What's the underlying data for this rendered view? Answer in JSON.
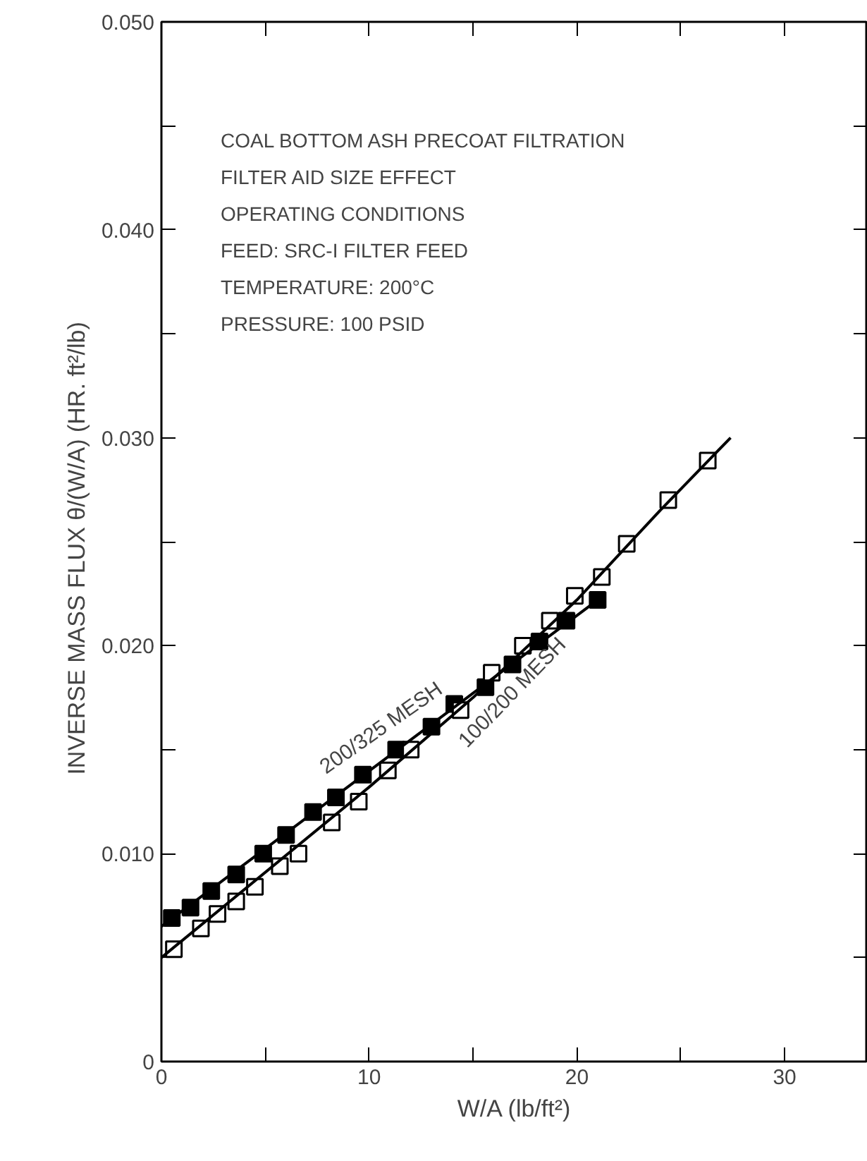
{
  "chart_data": {
    "type": "scatter",
    "xlabel": "W/A (lb/ft²)",
    "ylabel": "INVERSE MASS FLUX  θ/(W/A)  (HR. ft²/lb)",
    "annotations": [
      "COAL BOTTOM ASH PRECOAT FILTRATION",
      "FILTER AID SIZE EFFECT",
      "OPERATING CONDITIONS",
      "FEED: SRC-I FILTER FEED",
      "TEMPERATURE: 200°C",
      "PRESSURE: 100 PSID"
    ],
    "xlim": [
      0,
      34
    ],
    "ylim": [
      0,
      0.05
    ],
    "xticks": [
      0,
      {
        "value": 5,
        "label": null
      },
      10,
      {
        "value": 15,
        "label": null
      },
      20,
      {
        "value": 25,
        "label": null
      },
      30
    ],
    "yticks": [
      0,
      {
        "value": 0.005,
        "label": null
      },
      {
        "value": 0.01,
        "label": "0.010"
      },
      {
        "value": 0.015,
        "label": null
      },
      {
        "value": 0.02,
        "label": "0.020"
      },
      {
        "value": 0.025,
        "label": null
      },
      {
        "value": 0.03,
        "label": "0.030"
      },
      {
        "value": 0.035,
        "label": null
      },
      {
        "value": 0.04,
        "label": "0.040"
      },
      {
        "value": 0.045,
        "label": null
      },
      {
        "value": 0.05,
        "label": "0.050"
      }
    ],
    "grid": false,
    "marker": "square",
    "series": [
      {
        "name": "200/325 MESH",
        "color": "#000000",
        "x": [
          0.5,
          1.4,
          2.4,
          3.6,
          4.9,
          6.0,
          7.3,
          8.4,
          9.7,
          11.3,
          13.0,
          14.1,
          15.6,
          16.9,
          18.2,
          19.5,
          21.0
        ],
        "values": [
          0.0069,
          0.0074,
          0.0082,
          0.009,
          0.01,
          0.0109,
          0.012,
          0.0127,
          0.0138,
          0.015,
          0.0161,
          0.0172,
          0.018,
          0.0191,
          0.0202,
          0.0212,
          0.0222
        ]
      },
      {
        "name": "100/200 MESH",
        "color": "#ffffff",
        "x": [
          0.6,
          1.9,
          2.7,
          3.6,
          4.5,
          5.7,
          6.6,
          8.2,
          9.5,
          10.9,
          12.0,
          14.4,
          15.9,
          17.4,
          18.7,
          19.9,
          21.2,
          22.4,
          24.4,
          26.3
        ],
        "values": [
          0.0054,
          0.0064,
          0.0071,
          0.0077,
          0.0084,
          0.0094,
          0.01,
          0.0115,
          0.0125,
          0.014,
          0.015,
          0.0169,
          0.0187,
          0.02,
          0.0212,
          0.0224,
          0.0233,
          0.0249,
          0.027,
          0.0289
        ]
      },
      {
        "type": "line",
        "marker": "none",
        "color": "#000000",
        "x": [
          0,
          21.0
        ],
        "values": [
          0.0065,
          0.0222
        ]
      },
      {
        "type": "line",
        "marker": "none",
        "color": "#000000",
        "x": [
          0,
          10,
          15,
          20,
          24,
          27.4
        ],
        "values": [
          0.005,
          0.0132,
          0.0175,
          0.0222,
          0.0265,
          0.03
        ]
      }
    ]
  }
}
